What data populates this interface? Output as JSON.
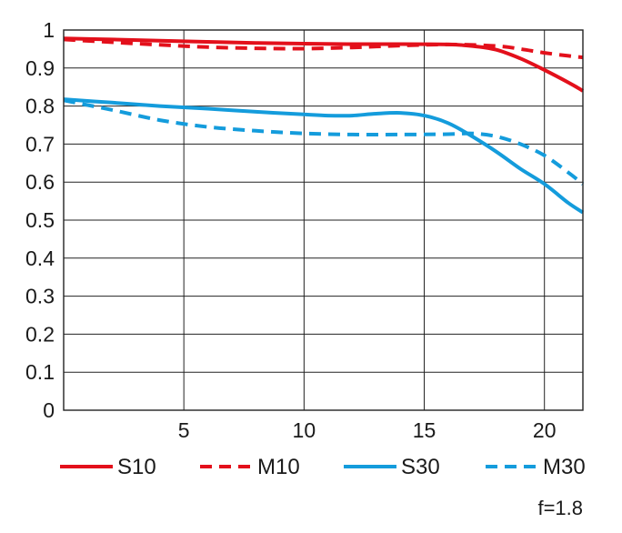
{
  "chart_data": {
    "type": "line",
    "title": "",
    "xlabel": "",
    "ylabel": "",
    "xlim": [
      0,
      21.6
    ],
    "ylim": [
      0,
      1
    ],
    "x_ticks": [
      5,
      10,
      15,
      20
    ],
    "y_ticks": [
      0,
      0.1,
      0.2,
      0.3,
      0.4,
      0.5,
      0.6,
      0.7,
      0.8,
      0.9,
      1
    ],
    "x_tick_labels": [
      "5",
      "10",
      "15",
      "20"
    ],
    "y_tick_labels": [
      "0",
      "0.1",
      "0.2",
      "0.3",
      "0.4",
      "0.5",
      "0.6",
      "0.7",
      "0.8",
      "0.9",
      "1"
    ],
    "grid": true,
    "legend_position": "bottom",
    "annotation": "f=1.8",
    "series": [
      {
        "name": "S10",
        "color": "#e3101b",
        "style": "solid",
        "x": [
          0,
          2,
          4,
          6,
          8,
          10,
          12,
          14,
          16,
          17,
          18,
          19,
          20,
          21,
          21.6
        ],
        "y": [
          0.978,
          0.975,
          0.972,
          0.969,
          0.966,
          0.964,
          0.963,
          0.963,
          0.962,
          0.958,
          0.948,
          0.925,
          0.895,
          0.862,
          0.84
        ]
      },
      {
        "name": "M10",
        "color": "#e3101b",
        "style": "dashed",
        "x": [
          0,
          2,
          4,
          6,
          8,
          10,
          12,
          14,
          16,
          18,
          19,
          20,
          21,
          21.6
        ],
        "y": [
          0.975,
          0.968,
          0.961,
          0.955,
          0.952,
          0.951,
          0.954,
          0.959,
          0.962,
          0.958,
          0.95,
          0.94,
          0.932,
          0.928
        ]
      },
      {
        "name": "S30",
        "color": "#149cdc",
        "style": "solid",
        "x": [
          0,
          2,
          4,
          6,
          8,
          10,
          11,
          12,
          13,
          14,
          15,
          16,
          17,
          18,
          19,
          20,
          21,
          21.6
        ],
        "y": [
          0.818,
          0.809,
          0.8,
          0.793,
          0.785,
          0.778,
          0.775,
          0.775,
          0.78,
          0.782,
          0.775,
          0.755,
          0.72,
          0.68,
          0.635,
          0.595,
          0.545,
          0.52
        ]
      },
      {
        "name": "M30",
        "color": "#149cdc",
        "style": "dashed",
        "x": [
          0,
          2,
          4,
          6,
          8,
          10,
          12,
          14,
          16,
          17,
          18,
          19,
          20,
          21,
          21.6
        ],
        "y": [
          0.815,
          0.79,
          0.763,
          0.745,
          0.735,
          0.728,
          0.725,
          0.725,
          0.726,
          0.728,
          0.72,
          0.7,
          0.67,
          0.625,
          0.595
        ]
      }
    ]
  }
}
